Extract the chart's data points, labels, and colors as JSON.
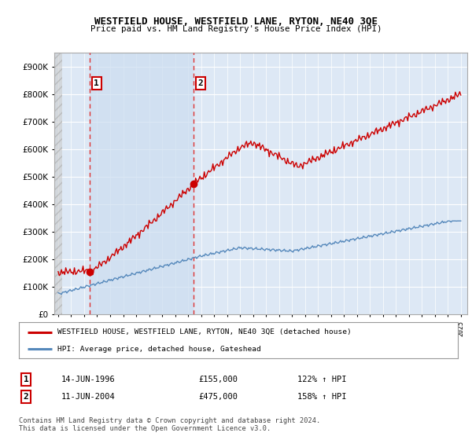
{
  "title": "WESTFIELD HOUSE, WESTFIELD LANE, RYTON, NE40 3QE",
  "subtitle": "Price paid vs. HM Land Registry's House Price Index (HPI)",
  "legend_line1": "WESTFIELD HOUSE, WESTFIELD LANE, RYTON, NE40 3QE (detached house)",
  "legend_line2": "HPI: Average price, detached house, Gateshead",
  "sale1_label": "1",
  "sale1_date": "14-JUN-1996",
  "sale1_price": 155000,
  "sale1_hpi": "122% ↑ HPI",
  "sale1_year": 1996.45,
  "sale2_label": "2",
  "sale2_date": "11-JUN-2004",
  "sale2_price": 475000,
  "sale2_hpi": "158% ↑ HPI",
  "sale2_year": 2004.45,
  "ylim_max": 950000,
  "ylabel_ticks": [
    0,
    100000,
    200000,
    300000,
    400000,
    500000,
    600000,
    700000,
    800000,
    900000
  ],
  "footer": "Contains HM Land Registry data © Crown copyright and database right 2024.\nThis data is licensed under the Open Government Licence v3.0.",
  "hpi_color": "#5588bb",
  "price_color": "#cc0000",
  "dashed_color": "#dd3333",
  "bg_chart_color": "#dde8f5",
  "bg_shade_color": "#ccddef",
  "hatch_color": "#bbbbbb"
}
